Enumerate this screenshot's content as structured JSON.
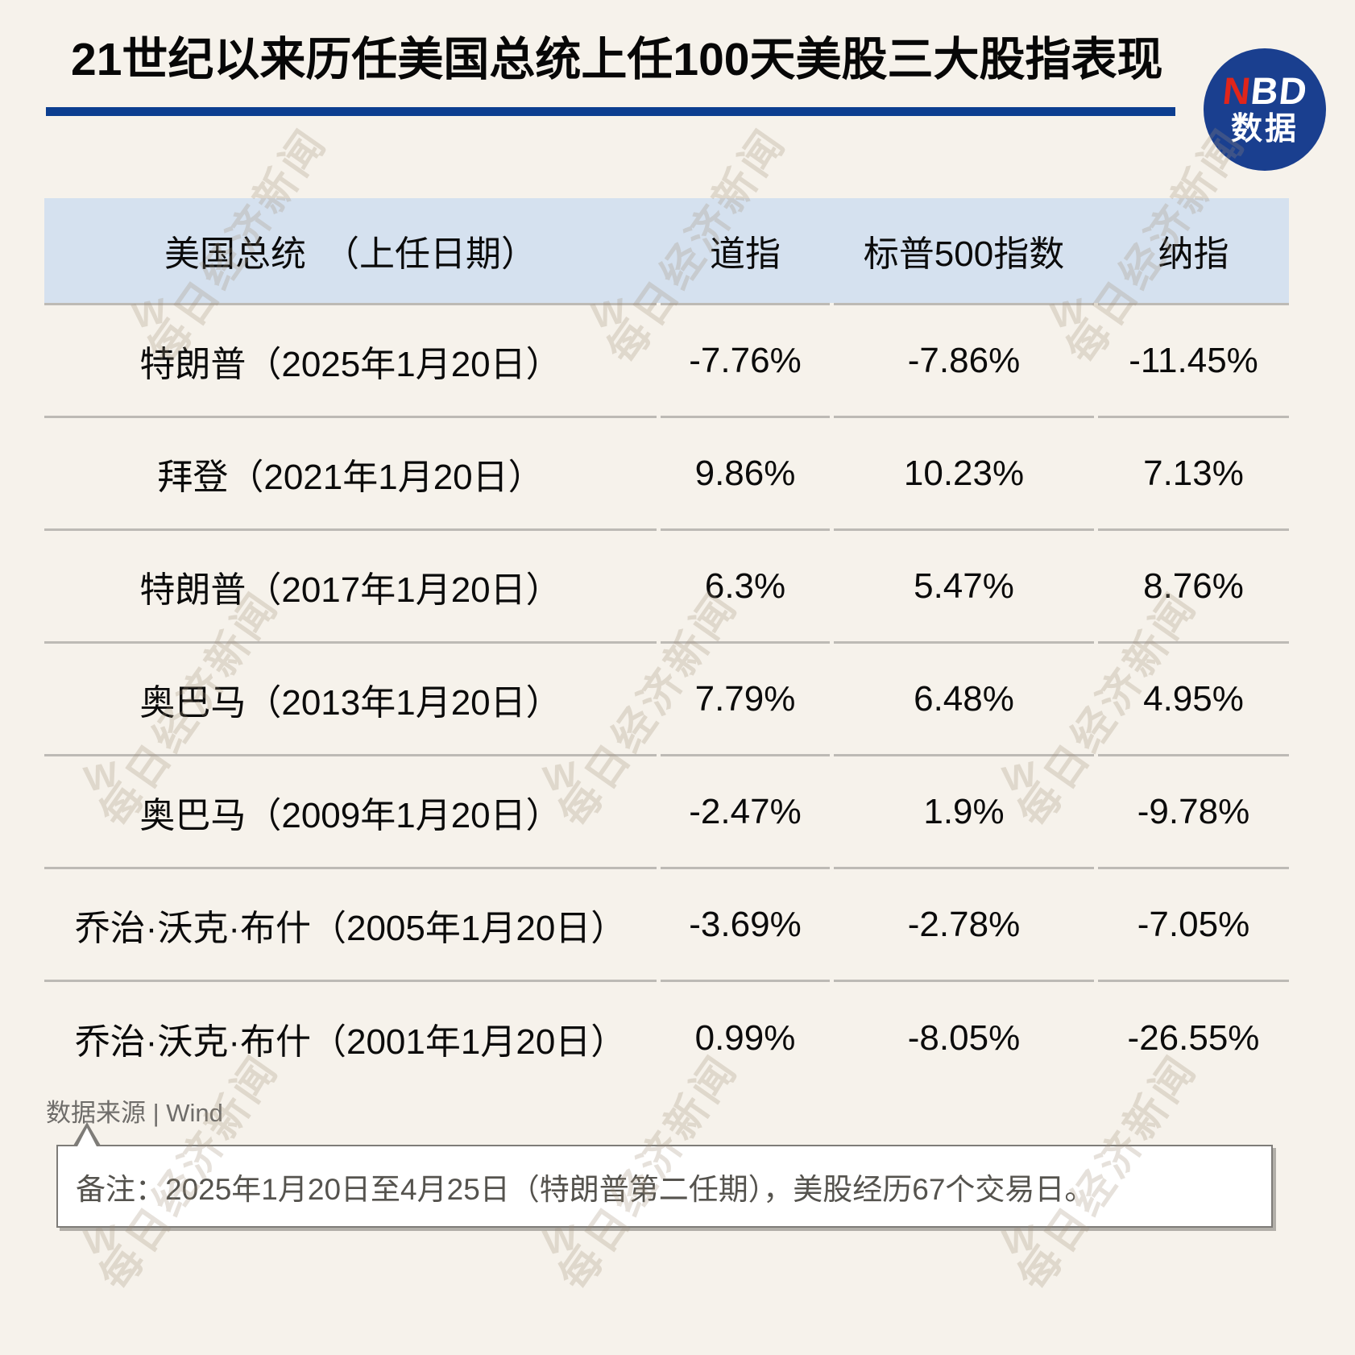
{
  "title": "21世纪以来历任美国总统上任100天美股三大股指表现",
  "logo": {
    "n": "N",
    "bd": "BD",
    "sub": "数据"
  },
  "colors": {
    "page_bg": "#F6F2EB",
    "accent_blue": "#0C3E90",
    "logo_blue": "#1A3F8F",
    "logo_red": "#E0251B",
    "header_bg": "#D5E1EF",
    "divider_gray": "#BDBAB5"
  },
  "table": {
    "headers": [
      "美国总统　（上任日期）",
      "道指",
      "标普500指数",
      "纳指"
    ],
    "rows": [
      {
        "president": "特朗普（2025年1月20日）",
        "dow": "-7.76%",
        "sp500": "-7.86%",
        "nasdaq": "-11.45%"
      },
      {
        "president": "拜登（2021年1月20日）",
        "dow": "9.86%",
        "sp500": "10.23%",
        "nasdaq": "7.13%"
      },
      {
        "president": "特朗普（2017年1月20日）",
        "dow": "6.3%",
        "sp500": "5.47%",
        "nasdaq": "8.76%"
      },
      {
        "president": "奥巴马（2013年1月20日）",
        "dow": "7.79%",
        "sp500": "6.48%",
        "nasdaq": "4.95%"
      },
      {
        "president": "奥巴马（2009年1月20日）",
        "dow": "-2.47%",
        "sp500": "1.9%",
        "nasdaq": "-9.78%"
      },
      {
        "president": "乔治·沃克·布什（2005年1月20日）",
        "dow": "-3.69%",
        "sp500": "-2.78%",
        "nasdaq": "-7.05%"
      },
      {
        "president": "乔治·沃克·布什（2001年1月20日）",
        "dow": "0.99%",
        "sp500": "-8.05%",
        "nasdaq": "-26.55%"
      }
    ]
  },
  "footer": {
    "source": "数据来源 | Wind",
    "note": "备注：2025年1月20日至4月25日（特朗普第二任期），美股经历67个交易日。"
  },
  "watermark": {
    "text": "每日经济新闻",
    "wind_mark": "W"
  },
  "chart_data": {
    "type": "table",
    "title": "21世纪以来历任美国总统上任100天美股三大股指表现",
    "columns": [
      "美国总统（上任日期）",
      "道指",
      "标普500指数",
      "纳指"
    ],
    "unit": "%",
    "rows": [
      {
        "president": "特朗普",
        "inauguration": "2025年1月20日",
        "dow": -7.76,
        "sp500": -7.86,
        "nasdaq": -11.45
      },
      {
        "president": "拜登",
        "inauguration": "2021年1月20日",
        "dow": 9.86,
        "sp500": 10.23,
        "nasdaq": 7.13
      },
      {
        "president": "特朗普",
        "inauguration": "2017年1月20日",
        "dow": 6.3,
        "sp500": 5.47,
        "nasdaq": 8.76
      },
      {
        "president": "奥巴马",
        "inauguration": "2013年1月20日",
        "dow": 7.79,
        "sp500": 6.48,
        "nasdaq": 4.95
      },
      {
        "president": "奥巴马",
        "inauguration": "2009年1月20日",
        "dow": -2.47,
        "sp500": 1.9,
        "nasdaq": -9.78
      },
      {
        "president": "乔治·沃克·布什",
        "inauguration": "2005年1月20日",
        "dow": -3.69,
        "sp500": -2.78,
        "nasdaq": -7.05
      },
      {
        "president": "乔治·沃克·布什",
        "inauguration": "2001年1月20日",
        "dow": 0.99,
        "sp500": -8.05,
        "nasdaq": -26.55
      }
    ],
    "source": "Wind",
    "note": "2025年1月20日至4月25日（特朗普第二任期），美股经历67个交易日。"
  }
}
